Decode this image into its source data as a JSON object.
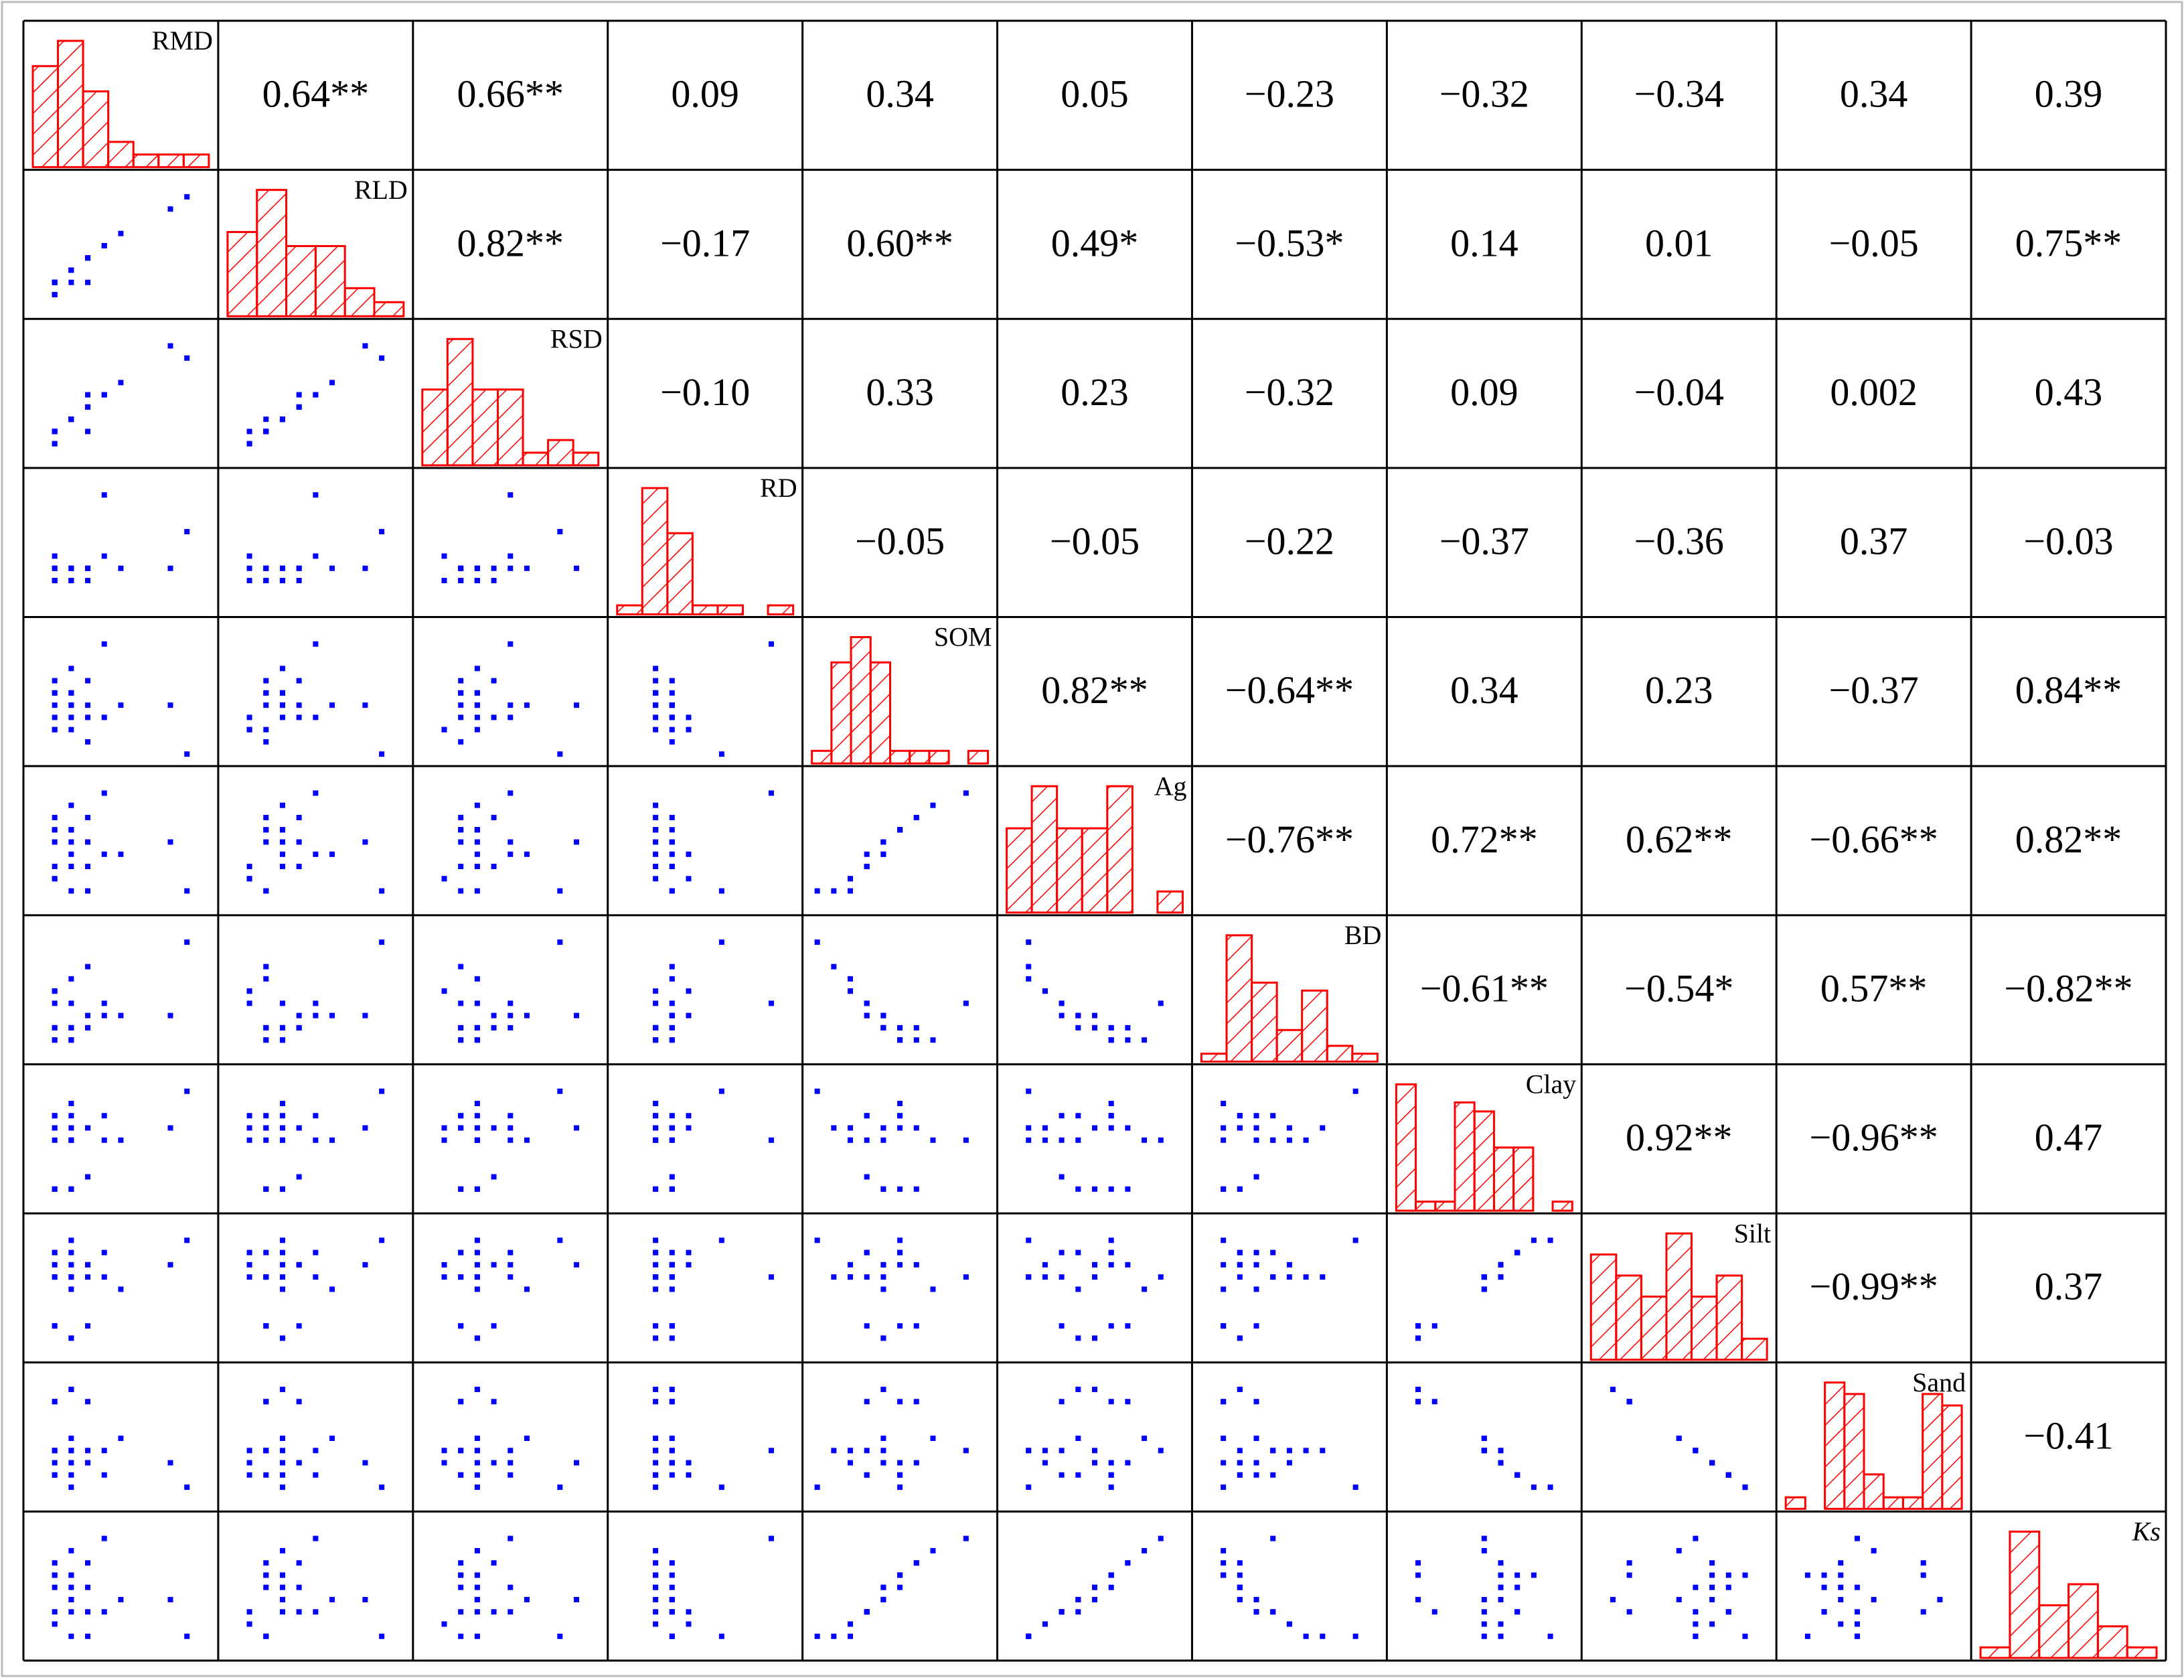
{
  "chart_data": {
    "type": "scatter-matrix",
    "lim": [
      0,
      10
    ],
    "point_color": "#0000ff",
    "hist_color": "#ff0000",
    "variables": [
      {
        "name": "RMD",
        "samples": [
          2,
          1,
          3,
          2,
          1,
          2,
          3,
          1,
          2,
          4,
          1,
          2,
          3,
          1,
          2,
          5,
          1,
          2,
          3,
          2,
          8,
          1,
          9,
          4
        ],
        "hist": [
          8,
          10,
          6,
          2,
          1,
          1,
          1
        ]
      },
      {
        "name": "RLD",
        "samples": [
          3,
          2,
          4,
          3,
          2,
          3,
          4,
          1,
          3,
          5,
          2,
          2,
          4,
          1,
          3,
          6,
          1,
          3,
          2,
          3,
          8,
          2,
          9,
          5
        ],
        "hist": [
          6,
          9,
          5,
          5,
          2,
          1
        ]
      },
      {
        "name": "RSD",
        "samples": [
          3,
          2,
          4,
          3,
          2,
          3,
          5,
          1,
          3,
          5,
          2,
          3,
          4,
          2,
          3,
          6,
          1,
          3,
          2,
          3,
          9,
          2,
          8,
          5
        ],
        "hist": [
          6,
          10,
          6,
          6,
          1,
          2,
          1
        ]
      },
      {
        "name": "RD",
        "samples": [
          3,
          2,
          3,
          2,
          3,
          2,
          3,
          2,
          3,
          4,
          2,
          3,
          2,
          3,
          2,
          3,
          4,
          2,
          3,
          2,
          3,
          2,
          6,
          9
        ],
        "hist": [
          1,
          14,
          9,
          1,
          1,
          0,
          1
        ]
      },
      {
        "name": "SOM",
        "samples": [
          4,
          5,
          3,
          4,
          6,
          3,
          4,
          2,
          5,
          3,
          4,
          2,
          6,
          3,
          5,
          4,
          2,
          5,
          1,
          7,
          4,
          5,
          0,
          9
        ],
        "hist": [
          1,
          8,
          10,
          8,
          1,
          1,
          1,
          0,
          1
        ]
      },
      {
        "name": "Ag",
        "samples": [
          5,
          6,
          3,
          4,
          7,
          3,
          5,
          2,
          6,
          4,
          5,
          1,
          7,
          3,
          6,
          4,
          2,
          6,
          1,
          8,
          5,
          6,
          1,
          9
        ],
        "hist": [
          4,
          6,
          4,
          4,
          6,
          0,
          1
        ]
      },
      {
        "name": "BD",
        "samples": [
          2,
          1,
          3,
          2,
          1,
          4,
          2,
          5,
          1,
          3,
          2,
          6,
          2,
          4,
          1,
          3,
          5,
          2,
          7,
          1,
          3,
          2,
          9,
          4
        ],
        "hist": [
          1,
          16,
          10,
          4,
          9,
          2,
          1
        ]
      },
      {
        "name": "Clay",
        "samples": [
          1,
          1,
          2,
          1,
          1,
          5,
          6,
          5,
          6,
          7,
          6,
          5,
          6,
          7,
          8,
          5,
          6,
          7,
          6,
          5,
          6,
          7,
          9,
          5
        ],
        "hist": [
          14,
          1,
          1,
          12,
          11,
          7,
          7,
          0,
          1
        ]
      },
      {
        "name": "Silt",
        "samples": [
          1,
          2,
          2,
          1,
          2,
          6,
          7,
          6,
          7,
          8,
          6,
          6,
          7,
          8,
          9,
          5,
          7,
          8,
          6,
          5,
          7,
          8,
          9,
          6
        ],
        "hist": [
          5,
          4,
          3,
          6,
          3,
          4,
          1
        ]
      },
      {
        "name": "Sand",
        "samples": [
          9,
          8,
          8,
          9,
          8,
          4,
          3,
          4,
          3,
          2,
          4,
          4,
          3,
          2,
          1,
          5,
          3,
          2,
          4,
          5,
          3,
          2,
          1,
          4
        ],
        "hist": [
          1,
          0,
          11,
          10,
          3,
          1,
          1,
          10,
          9
        ]
      },
      {
        "name": "Ks",
        "samples": [
          4,
          6,
          3,
          4,
          7,
          3,
          5,
          2,
          6,
          3,
          5,
          1,
          7,
          3,
          6,
          4,
          2,
          5,
          1,
          8,
          4,
          6,
          1,
          9
        ],
        "hist": [
          1,
          12,
          5,
          7,
          3,
          1
        ]
      }
    ],
    "correlations": [
      [
        "0.64**",
        "0.66**",
        "0.09",
        "0.34",
        "0.05",
        "−0.23",
        "−0.32",
        "−0.34",
        "0.34",
        "0.39"
      ],
      [
        "0.82**",
        "−0.17",
        "0.60**",
        "0.49*",
        "−0.53*",
        "0.14",
        "0.01",
        "−0.05",
        "0.75**"
      ],
      [
        "−0.10",
        "0.33",
        "0.23",
        "−0.32",
        "0.09",
        "−0.04",
        "0.002",
        "0.43"
      ],
      [
        "−0.05",
        "−0.05",
        "−0.22",
        "−0.37",
        "−0.36",
        "0.37",
        "−0.03"
      ],
      [
        "0.82**",
        "−0.64**",
        "0.34",
        "0.23",
        "−0.37",
        "0.84**"
      ],
      [
        "−0.76**",
        "0.72**",
        "0.62**",
        "−0.66**",
        "0.82**"
      ],
      [
        "−0.61**",
        "−0.54*",
        "0.57**",
        "−0.82**"
      ],
      [
        "0.92**",
        "−0.96**",
        "0.47"
      ],
      [
        "−0.99**",
        "0.37"
      ],
      [
        "−0.41"
      ]
    ]
  }
}
